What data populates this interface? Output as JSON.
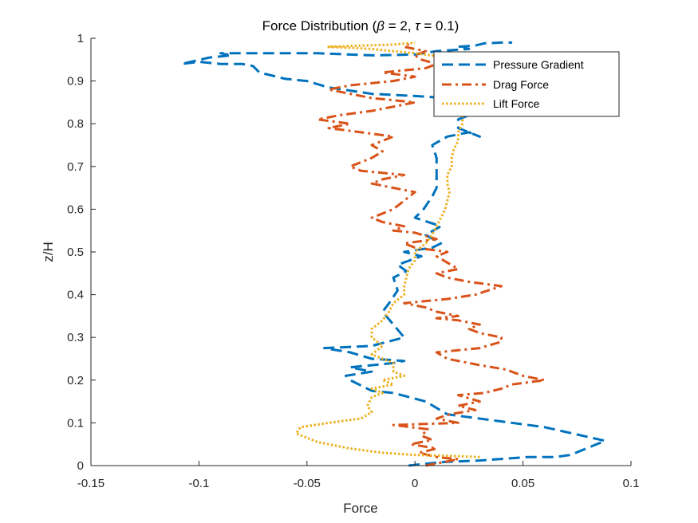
{
  "chart_data": {
    "type": "line",
    "title": "Force Distribution (β = 2, τ = 0.1)",
    "title_parts": {
      "prefix": "Force Distribution (",
      "sym1": "β",
      "mid": " = 2, ",
      "sym2": "τ",
      "suffix": " = 0.1)"
    },
    "xlabel": "Force",
    "ylabel": "z/H",
    "xlim": [
      -0.15,
      0.1
    ],
    "ylim": [
      0,
      1
    ],
    "xticks": [
      -0.15,
      -0.1,
      -0.05,
      0,
      0.05,
      0.1
    ],
    "xtick_labels": [
      "-0.15",
      "-0.1",
      "-0.05",
      "0",
      "0.05",
      "0.1"
    ],
    "yticks": [
      0,
      0.1,
      0.2,
      0.3,
      0.4,
      0.5,
      0.6,
      0.7,
      0.8,
      0.9,
      1
    ],
    "ytick_labels": [
      "0",
      "0.1",
      "0.2",
      "0.3",
      "0.4",
      "0.5",
      "0.6",
      "0.7",
      "0.8",
      "0.9",
      "1"
    ],
    "grid": false,
    "legend_position": "top-right",
    "series": [
      {
        "name": "Pressure Gradient",
        "color": "#0072BD",
        "style": "dashed",
        "points": [
          [
            -0.003,
            0.0
          ],
          [
            0.012,
            0.008
          ],
          [
            0.03,
            0.012
          ],
          [
            0.052,
            0.02
          ],
          [
            0.065,
            0.02
          ],
          [
            0.072,
            0.025
          ],
          [
            0.088,
            0.058
          ],
          [
            0.06,
            0.09
          ],
          [
            0.015,
            0.12
          ],
          [
            0.005,
            0.15
          ],
          [
            -0.01,
            0.17
          ],
          [
            -0.02,
            0.175
          ],
          [
            -0.03,
            0.2
          ],
          [
            -0.032,
            0.21
          ],
          [
            -0.02,
            0.22
          ],
          [
            -0.03,
            0.23
          ],
          [
            -0.01,
            0.24
          ],
          [
            -0.005,
            0.245
          ],
          [
            -0.02,
            0.25
          ],
          [
            -0.03,
            0.265
          ],
          [
            -0.042,
            0.275
          ],
          [
            -0.02,
            0.28
          ],
          [
            -0.005,
            0.3
          ],
          [
            -0.01,
            0.33
          ],
          [
            -0.015,
            0.36
          ],
          [
            -0.012,
            0.38
          ],
          [
            -0.008,
            0.41
          ],
          [
            -0.01,
            0.44
          ],
          [
            -0.004,
            0.455
          ],
          [
            -0.008,
            0.47
          ],
          [
            0.003,
            0.49
          ],
          [
            -0.005,
            0.5
          ],
          [
            0.008,
            0.51
          ],
          [
            0.012,
            0.52
          ],
          [
            0.005,
            0.54
          ],
          [
            0.012,
            0.56
          ],
          [
            0.0,
            0.58
          ],
          [
            0.004,
            0.6
          ],
          [
            0.008,
            0.63
          ],
          [
            0.01,
            0.65
          ],
          [
            0.01,
            0.68
          ],
          [
            0.01,
            0.7
          ],
          [
            0.01,
            0.72
          ],
          [
            0.008,
            0.75
          ],
          [
            0.015,
            0.77
          ],
          [
            0.02,
            0.775
          ],
          [
            0.025,
            0.78
          ],
          [
            0.03,
            0.77
          ],
          [
            0.02,
            0.79
          ],
          [
            0.02,
            0.81
          ],
          [
            0.03,
            0.83
          ],
          [
            0.02,
            0.84
          ],
          [
            0.015,
            0.86
          ],
          [
            0.0,
            0.865
          ],
          [
            -0.02,
            0.87
          ],
          [
            -0.04,
            0.885
          ],
          [
            -0.05,
            0.9
          ],
          [
            -0.06,
            0.905
          ],
          [
            -0.072,
            0.92
          ],
          [
            -0.075,
            0.935
          ],
          [
            -0.08,
            0.94
          ],
          [
            -0.09,
            0.94
          ],
          [
            -0.1,
            0.945
          ],
          [
            -0.108,
            0.94
          ],
          [
            -0.095,
            0.955
          ],
          [
            -0.085,
            0.96
          ],
          [
            -0.09,
            0.965
          ],
          [
            -0.07,
            0.965
          ],
          [
            -0.045,
            0.965
          ],
          [
            -0.02,
            0.96
          ],
          [
            0.0,
            0.962
          ],
          [
            0.01,
            0.97
          ],
          [
            0.025,
            0.975
          ],
          [
            0.02,
            0.98
          ],
          [
            0.028,
            0.983
          ],
          [
            0.032,
            0.988
          ],
          [
            0.04,
            0.99
          ],
          [
            0.045,
            0.99
          ]
        ]
      },
      {
        "name": "Drag Force",
        "color": "#D95319",
        "style": "dashdot",
        "points": [
          [
            0.005,
            0.0
          ],
          [
            0.02,
            0.015
          ],
          [
            0.01,
            0.02
          ],
          [
            0.002,
            0.03
          ],
          [
            0.01,
            0.04
          ],
          [
            -0.002,
            0.05
          ],
          [
            0.008,
            0.06
          ],
          [
            0.003,
            0.07
          ],
          [
            0.006,
            0.085
          ],
          [
            -0.01,
            0.095
          ],
          [
            0.02,
            0.1
          ],
          [
            0.01,
            0.11
          ],
          [
            0.016,
            0.12
          ],
          [
            0.028,
            0.13
          ],
          [
            0.02,
            0.14
          ],
          [
            0.03,
            0.15
          ],
          [
            0.02,
            0.165
          ],
          [
            0.032,
            0.17
          ],
          [
            0.04,
            0.18
          ],
          [
            0.045,
            0.19
          ],
          [
            0.06,
            0.2
          ],
          [
            0.05,
            0.21
          ],
          [
            0.042,
            0.225
          ],
          [
            0.03,
            0.235
          ],
          [
            0.015,
            0.25
          ],
          [
            0.01,
            0.265
          ],
          [
            0.03,
            0.275
          ],
          [
            0.04,
            0.29
          ],
          [
            0.04,
            0.3
          ],
          [
            0.03,
            0.31
          ],
          [
            0.025,
            0.32
          ],
          [
            0.03,
            0.33
          ],
          [
            0.02,
            0.34
          ],
          [
            0.01,
            0.345
          ],
          [
            0.02,
            0.35
          ],
          [
            0.01,
            0.36
          ],
          [
            0.005,
            0.37
          ],
          [
            -0.005,
            0.38
          ],
          [
            0.015,
            0.39
          ],
          [
            0.028,
            0.4
          ],
          [
            0.04,
            0.42
          ],
          [
            0.025,
            0.43
          ],
          [
            0.015,
            0.44
          ],
          [
            0.01,
            0.45
          ],
          [
            0.02,
            0.46
          ],
          [
            0.015,
            0.475
          ],
          [
            0.01,
            0.49
          ],
          [
            0.015,
            0.5
          ],
          [
            0.0,
            0.51
          ],
          [
            -0.005,
            0.52
          ],
          [
            0.01,
            0.53
          ],
          [
            0.0,
            0.545
          ],
          [
            -0.01,
            0.55
          ],
          [
            -0.005,
            0.56
          ],
          [
            -0.015,
            0.57
          ],
          [
            -0.02,
            0.58
          ],
          [
            -0.015,
            0.59
          ],
          [
            -0.01,
            0.6
          ],
          [
            -0.005,
            0.62
          ],
          [
            0.0,
            0.64
          ],
          [
            -0.01,
            0.65
          ],
          [
            -0.02,
            0.66
          ],
          [
            -0.015,
            0.67
          ],
          [
            -0.005,
            0.68
          ],
          [
            -0.025,
            0.69
          ],
          [
            -0.03,
            0.7
          ],
          [
            -0.02,
            0.72
          ],
          [
            -0.015,
            0.735
          ],
          [
            -0.02,
            0.75
          ],
          [
            -0.01,
            0.77
          ],
          [
            -0.025,
            0.78
          ],
          [
            -0.04,
            0.79
          ],
          [
            -0.03,
            0.8
          ],
          [
            -0.045,
            0.81
          ],
          [
            -0.035,
            0.82
          ],
          [
            -0.02,
            0.83
          ],
          [
            -0.01,
            0.84
          ],
          [
            0.0,
            0.85
          ],
          [
            -0.02,
            0.86
          ],
          [
            -0.03,
            0.87
          ],
          [
            -0.04,
            0.88
          ],
          [
            -0.03,
            0.89
          ],
          [
            -0.01,
            0.9
          ],
          [
            0.0,
            0.91
          ],
          [
            -0.015,
            0.92
          ],
          [
            0.005,
            0.93
          ],
          [
            0.01,
            0.94
          ],
          [
            0.003,
            0.95
          ],
          [
            0.0,
            0.96
          ],
          [
            0.005,
            0.97
          ],
          [
            0.0,
            0.975
          ],
          [
            -0.005,
            0.98
          ],
          [
            -0.002,
            0.99
          ]
        ]
      },
      {
        "name": "Lift Force",
        "color": "#EDB120",
        "style": "dotted",
        "points": [
          [
            0.03,
            0.02
          ],
          [
            0.02,
            0.022
          ],
          [
            0.0,
            0.025
          ],
          [
            -0.015,
            0.03
          ],
          [
            -0.03,
            0.04
          ],
          [
            -0.045,
            0.055
          ],
          [
            -0.055,
            0.075
          ],
          [
            -0.053,
            0.09
          ],
          [
            -0.04,
            0.1
          ],
          [
            -0.025,
            0.11
          ],
          [
            -0.02,
            0.125
          ],
          [
            -0.022,
            0.14
          ],
          [
            -0.02,
            0.16
          ],
          [
            -0.015,
            0.17
          ],
          [
            -0.02,
            0.18
          ],
          [
            -0.01,
            0.19
          ],
          [
            -0.015,
            0.2
          ],
          [
            -0.005,
            0.21
          ],
          [
            -0.01,
            0.22
          ],
          [
            -0.01,
            0.24
          ],
          [
            -0.015,
            0.25
          ],
          [
            -0.02,
            0.26
          ],
          [
            -0.015,
            0.28
          ],
          [
            -0.02,
            0.3
          ],
          [
            -0.02,
            0.32
          ],
          [
            -0.015,
            0.34
          ],
          [
            -0.012,
            0.36
          ],
          [
            -0.01,
            0.38
          ],
          [
            -0.005,
            0.4
          ],
          [
            -0.005,
            0.42
          ],
          [
            -0.004,
            0.44
          ],
          [
            -0.003,
            0.46
          ],
          [
            0.0,
            0.48
          ],
          [
            0.0,
            0.5
          ],
          [
            0.005,
            0.52
          ],
          [
            0.008,
            0.54
          ],
          [
            0.01,
            0.56
          ],
          [
            0.012,
            0.58
          ],
          [
            0.014,
            0.6
          ],
          [
            0.015,
            0.62
          ],
          [
            0.016,
            0.64
          ],
          [
            0.015,
            0.66
          ],
          [
            0.015,
            0.68
          ],
          [
            0.017,
            0.7
          ],
          [
            0.017,
            0.72
          ],
          [
            0.018,
            0.74
          ],
          [
            0.02,
            0.76
          ],
          [
            0.02,
            0.78
          ],
          [
            0.022,
            0.8
          ],
          [
            0.022,
            0.82
          ],
          [
            0.024,
            0.84
          ],
          [
            0.025,
            0.86
          ],
          [
            0.026,
            0.88
          ],
          [
            0.026,
            0.9
          ],
          [
            0.025,
            0.92
          ],
          [
            0.022,
            0.94
          ],
          [
            0.015,
            0.955
          ],
          [
            0.0,
            0.965
          ],
          [
            -0.02,
            0.975
          ],
          [
            -0.04,
            0.98
          ],
          [
            -0.03,
            0.982
          ],
          [
            -0.01,
            0.985
          ],
          [
            0.0,
            0.99
          ]
        ]
      }
    ]
  }
}
